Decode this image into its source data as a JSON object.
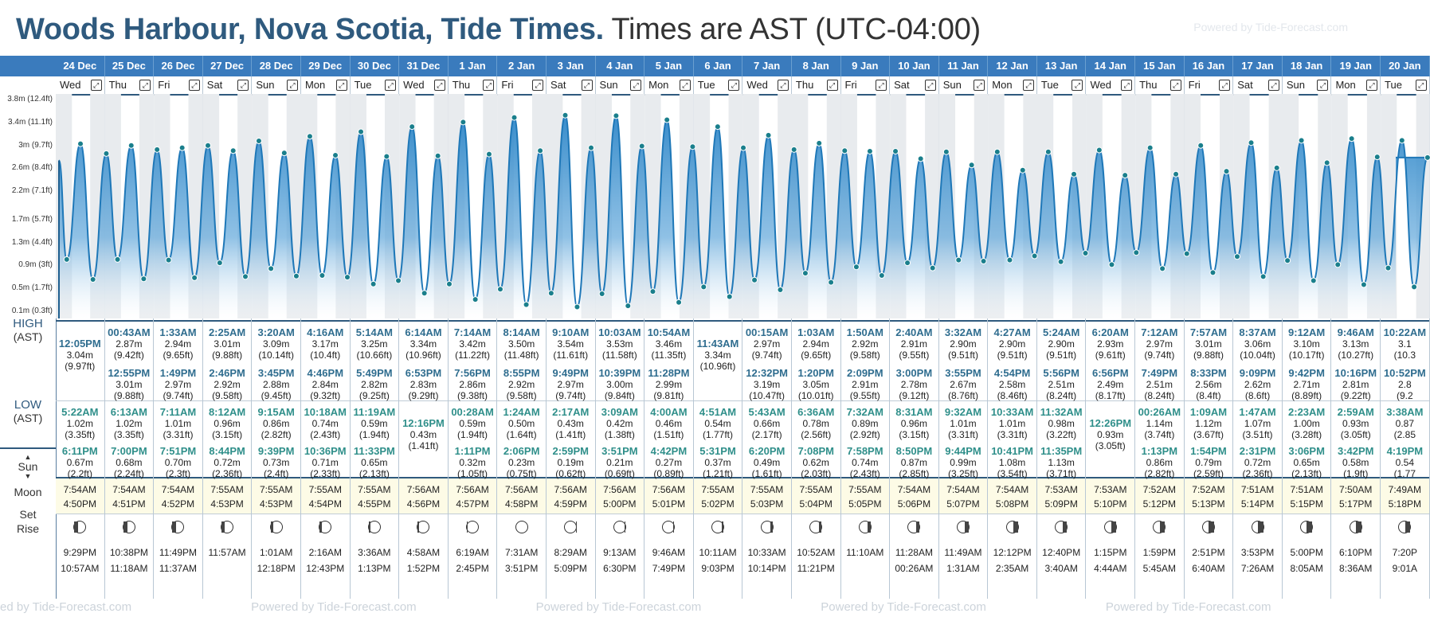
{
  "header": {
    "place": "Woods Harbour, Nova Scotia, Tide Times.",
    "timezone": "Times are AST (UTC-04:00)",
    "powered_by": "Powered by Tide-Forecast.com",
    "footer_repeat": [
      "ed by Tide-Forecast.com",
      "Powered by Tide-Forecast.com",
      "Powered by Tide-Forecast.com",
      "Powered by Tide-Forecast.com",
      "Powered by Tide-Forecast.com"
    ]
  },
  "labels": {
    "high": "HIGH",
    "high_tz": "(AST)",
    "low": "LOW",
    "low_tz": "(AST)",
    "sun": "Sun",
    "moon": "Moon",
    "set": "Set",
    "rise": "Rise",
    "axis": [
      "3.8m (12.4ft)",
      "3.4m (11.1ft)",
      "3m (9.7ft)",
      "2.6m (8.4ft)",
      "2.2m (7.1ft)",
      "1.7m (5.7ft)",
      "1.3m (4.4ft)",
      "0.9m (3ft)",
      "0.5m (1.7ft)",
      "0.1m (0.3ft)"
    ]
  },
  "colors": {
    "header_blue": "#3a7bbd",
    "title_blue": "#2f5a7e",
    "water": "#2d86c8"
  },
  "days": [
    {
      "date": "24 Dec",
      "dow": "Wed",
      "high": [
        {
          "t": "12:05PM",
          "m": "3.04m",
          "f": "(9.97ft)"
        }
      ],
      "low": [
        {
          "t": "5:22AM",
          "m": "1.02m",
          "f": "(3.35ft)"
        },
        {
          "t": "6:11PM",
          "m": "0.67m",
          "f": "(2.2ft)"
        }
      ],
      "sunrise": "7:54AM",
      "sunset": "4:50PM",
      "moonset": "9:29PM",
      "moonrise": "10:57AM",
      "phase": 0.28
    },
    {
      "date": "25 Dec",
      "dow": "Thu",
      "high": [
        {
          "t": "00:43AM",
          "m": "2.87m",
          "f": "(9.42ft)"
        },
        {
          "t": "12:55PM",
          "m": "3.01m",
          "f": "(9.88ft)"
        }
      ],
      "low": [
        {
          "t": "6:13AM",
          "m": "1.02m",
          "f": "(3.35ft)"
        },
        {
          "t": "7:00PM",
          "m": "0.68m",
          "f": "(2.24ft)"
        }
      ],
      "sunrise": "7:54AM",
      "sunset": "4:51PM",
      "moonset": "10:38PM",
      "moonrise": "11:18AM",
      "phase": 0.35
    },
    {
      "date": "26 Dec",
      "dow": "Fri",
      "high": [
        {
          "t": "1:33AM",
          "m": "2.94m",
          "f": "(9.65ft)"
        },
        {
          "t": "1:49PM",
          "m": "2.97m",
          "f": "(9.74ft)"
        }
      ],
      "low": [
        {
          "t": "7:11AM",
          "m": "1.01m",
          "f": "(3.31ft)"
        },
        {
          "t": "7:51PM",
          "m": "0.70m",
          "f": "(2.3ft)"
        }
      ],
      "sunrise": "7:54AM",
      "sunset": "4:52PM",
      "moonset": "11:49PM",
      "moonrise": "11:37AM",
      "phase": 0.42
    },
    {
      "date": "27 Dec",
      "dow": "Sat",
      "high": [
        {
          "t": "2:25AM",
          "m": "3.01m",
          "f": "(9.88ft)"
        },
        {
          "t": "2:46PM",
          "m": "2.92m",
          "f": "(9.58ft)"
        }
      ],
      "low": [
        {
          "t": "8:12AM",
          "m": "0.96m",
          "f": "(3.15ft)"
        },
        {
          "t": "8:44PM",
          "m": "0.72m",
          "f": "(2.36ft)"
        }
      ],
      "sunrise": "7:55AM",
      "sunset": "4:53PM",
      "moonset": "",
      "moonrise": "11:57AM",
      "phase": 0.5
    },
    {
      "date": "28 Dec",
      "dow": "Sun",
      "high": [
        {
          "t": "3:20AM",
          "m": "3.09m",
          "f": "(10.14ft)"
        },
        {
          "t": "3:45PM",
          "m": "2.88m",
          "f": "(9.45ft)"
        }
      ],
      "low": [
        {
          "t": "9:15AM",
          "m": "0.86m",
          "f": "(2.82ft)"
        },
        {
          "t": "9:39PM",
          "m": "0.73m",
          "f": "(2.4ft)"
        }
      ],
      "sunrise": "7:55AM",
      "sunset": "4:53PM",
      "moonset": "1:01AM",
      "moonrise": "12:18PM",
      "phase": 0.58
    },
    {
      "date": "29 Dec",
      "dow": "Mon",
      "high": [
        {
          "t": "4:16AM",
          "m": "3.17m",
          "f": "(10.4ft)"
        },
        {
          "t": "4:46PM",
          "m": "2.84m",
          "f": "(9.32ft)"
        }
      ],
      "low": [
        {
          "t": "10:18AM",
          "m": "0.74m",
          "f": "(2.43ft)"
        },
        {
          "t": "10:36PM",
          "m": "0.71m",
          "f": "(2.33ft)"
        }
      ],
      "sunrise": "7:55AM",
      "sunset": "4:54PM",
      "moonset": "2:16AM",
      "moonrise": "12:43PM",
      "phase": 0.66
    },
    {
      "date": "30 Dec",
      "dow": "Tue",
      "high": [
        {
          "t": "5:14AM",
          "m": "3.25m",
          "f": "(10.66ft)"
        },
        {
          "t": "5:49PM",
          "m": "2.82m",
          "f": "(9.25ft)"
        }
      ],
      "low": [
        {
          "t": "11:19AM",
          "m": "0.59m",
          "f": "(1.94ft)"
        },
        {
          "t": "11:33PM",
          "m": "0.65m",
          "f": "(2.13ft)"
        }
      ],
      "sunrise": "7:55AM",
      "sunset": "4:55PM",
      "moonset": "3:36AM",
      "moonrise": "1:13PM",
      "phase": 0.74
    },
    {
      "date": "31 Dec",
      "dow": "Wed",
      "high": [
        {
          "t": "6:14AM",
          "m": "3.34m",
          "f": "(10.96ft)"
        },
        {
          "t": "6:53PM",
          "m": "2.83m",
          "f": "(9.29ft)"
        }
      ],
      "low": [
        {
          "t": "12:16PM",
          "m": "0.43m",
          "f": "(1.41ft)"
        }
      ],
      "sunrise": "7:56AM",
      "sunset": "4:56PM",
      "moonset": "4:58AM",
      "moonrise": "1:52PM",
      "phase": 0.82
    },
    {
      "date": "1 Jan",
      "dow": "Thu",
      "high": [
        {
          "t": "7:14AM",
          "m": "3.42m",
          "f": "(11.22ft)"
        },
        {
          "t": "7:56PM",
          "m": "2.86m",
          "f": "(9.38ft)"
        }
      ],
      "low": [
        {
          "t": "00:28AM",
          "m": "0.59m",
          "f": "(1.94ft)"
        },
        {
          "t": "1:11PM",
          "m": "0.32m",
          "f": "(1.05ft)"
        }
      ],
      "sunrise": "7:56AM",
      "sunset": "4:57PM",
      "moonset": "6:19AM",
      "moonrise": "2:45PM",
      "phase": 0.9
    },
    {
      "date": "2 Jan",
      "dow": "Fri",
      "high": [
        {
          "t": "8:14AM",
          "m": "3.50m",
          "f": "(11.48ft)"
        },
        {
          "t": "8:55PM",
          "m": "2.92m",
          "f": "(9.58ft)"
        }
      ],
      "low": [
        {
          "t": "1:24AM",
          "m": "0.50m",
          "f": "(1.64ft)"
        },
        {
          "t": "2:06PM",
          "m": "0.23m",
          "f": "(0.75ft)"
        }
      ],
      "sunrise": "7:56AM",
      "sunset": "4:58PM",
      "moonset": "7:31AM",
      "moonrise": "3:51PM",
      "phase": 1.0
    },
    {
      "date": "3 Jan",
      "dow": "Sat",
      "high": [
        {
          "t": "9:10AM",
          "m": "3.54m",
          "f": "(11.61ft)"
        },
        {
          "t": "9:49PM",
          "m": "2.97m",
          "f": "(9.74ft)"
        }
      ],
      "low": [
        {
          "t": "2:17AM",
          "m": "0.43m",
          "f": "(1.41ft)"
        },
        {
          "t": "2:59PM",
          "m": "0.19m",
          "f": "(0.62ft)"
        }
      ],
      "sunrise": "7:56AM",
      "sunset": "4:59PM",
      "moonset": "8:29AM",
      "moonrise": "5:09PM",
      "phase": 0.95
    },
    {
      "date": "4 Jan",
      "dow": "Sun",
      "high": [
        {
          "t": "10:03AM",
          "m": "3.53m",
          "f": "(11.58ft)"
        },
        {
          "t": "10:39PM",
          "m": "3.00m",
          "f": "(9.84ft)"
        }
      ],
      "low": [
        {
          "t": "3:09AM",
          "m": "0.42m",
          "f": "(1.38ft)"
        },
        {
          "t": "3:51PM",
          "m": "0.21m",
          "f": "(0.69ft)"
        }
      ],
      "sunrise": "7:56AM",
      "sunset": "5:00PM",
      "moonset": "9:13AM",
      "moonrise": "6:30PM",
      "phase": 0.88
    },
    {
      "date": "5 Jan",
      "dow": "Mon",
      "high": [
        {
          "t": "10:54AM",
          "m": "3.46m",
          "f": "(11.35ft)"
        },
        {
          "t": "11:28PM",
          "m": "2.99m",
          "f": "(9.81ft)"
        }
      ],
      "low": [
        {
          "t": "4:00AM",
          "m": "0.46m",
          "f": "(1.51ft)"
        },
        {
          "t": "4:42PM",
          "m": "0.27m",
          "f": "(0.89ft)"
        }
      ],
      "sunrise": "7:56AM",
      "sunset": "5:01PM",
      "moonset": "9:46AM",
      "moonrise": "7:49PM",
      "phase": 0.8
    },
    {
      "date": "6 Jan",
      "dow": "Tue",
      "high": [
        {
          "t": "11:43AM",
          "m": "3.34m",
          "f": "(10.96ft)"
        }
      ],
      "low": [
        {
          "t": "4:51AM",
          "m": "0.54m",
          "f": "(1.77ft)"
        },
        {
          "t": "5:31PM",
          "m": "0.37m",
          "f": "(1.21ft)"
        }
      ],
      "sunrise": "7:55AM",
      "sunset": "5:02PM",
      "moonset": "10:11AM",
      "moonrise": "9:03PM",
      "phase": 0.72
    },
    {
      "date": "7 Jan",
      "dow": "Wed",
      "high": [
        {
          "t": "00:15AM",
          "m": "2.97m",
          "f": "(9.74ft)"
        },
        {
          "t": "12:32PM",
          "m": "3.19m",
          "f": "(10.47ft)"
        }
      ],
      "low": [
        {
          "t": "5:43AM",
          "m": "0.66m",
          "f": "(2.17ft)"
        },
        {
          "t": "6:20PM",
          "m": "0.49m",
          "f": "(1.61ft)"
        }
      ],
      "sunrise": "7:55AM",
      "sunset": "5:03PM",
      "moonset": "10:33AM",
      "moonrise": "10:14PM",
      "phase": 0.64
    },
    {
      "date": "8 Jan",
      "dow": "Thu",
      "high": [
        {
          "t": "1:03AM",
          "m": "2.94m",
          "f": "(9.65ft)"
        },
        {
          "t": "1:20PM",
          "m": "3.05m",
          "f": "(10.01ft)"
        }
      ],
      "low": [
        {
          "t": "6:36AM",
          "m": "0.78m",
          "f": "(2.56ft)"
        },
        {
          "t": "7:08PM",
          "m": "0.62m",
          "f": "(2.03ft)"
        }
      ],
      "sunrise": "7:55AM",
      "sunset": "5:04PM",
      "moonset": "10:52AM",
      "moonrise": "11:21PM",
      "phase": 0.56
    },
    {
      "date": "9 Jan",
      "dow": "Fri",
      "high": [
        {
          "t": "1:50AM",
          "m": "2.92m",
          "f": "(9.58ft)"
        },
        {
          "t": "2:09PM",
          "m": "2.91m",
          "f": "(9.55ft)"
        }
      ],
      "low": [
        {
          "t": "7:32AM",
          "m": "0.89m",
          "f": "(2.92ft)"
        },
        {
          "t": "7:58PM",
          "m": "0.74m",
          "f": "(2.43ft)"
        }
      ],
      "sunrise": "7:55AM",
      "sunset": "5:05PM",
      "moonset": "11:10AM",
      "moonrise": "",
      "phase": 0.5
    },
    {
      "date": "10 Jan",
      "dow": "Sat",
      "high": [
        {
          "t": "2:40AM",
          "m": "2.91m",
          "f": "(9.55ft)"
        },
        {
          "t": "3:00PM",
          "m": "2.78m",
          "f": "(9.12ft)"
        }
      ],
      "low": [
        {
          "t": "8:31AM",
          "m": "0.96m",
          "f": "(3.15ft)"
        },
        {
          "t": "8:50PM",
          "m": "0.87m",
          "f": "(2.85ft)"
        }
      ],
      "sunrise": "7:54AM",
      "sunset": "5:06PM",
      "moonset": "11:28AM",
      "moonrise": "00:26AM",
      "phase": 0.42
    },
    {
      "date": "11 Jan",
      "dow": "Sun",
      "high": [
        {
          "t": "3:32AM",
          "m": "2.90m",
          "f": "(9.51ft)"
        },
        {
          "t": "3:55PM",
          "m": "2.67m",
          "f": "(8.76ft)"
        }
      ],
      "low": [
        {
          "t": "9:32AM",
          "m": "1.01m",
          "f": "(3.31ft)"
        },
        {
          "t": "9:44PM",
          "m": "0.99m",
          "f": "(3.25ft)"
        }
      ],
      "sunrise": "7:54AM",
      "sunset": "5:07PM",
      "moonset": "11:49AM",
      "moonrise": "1:31AM",
      "phase": 0.34
    },
    {
      "date": "12 Jan",
      "dow": "Mon",
      "high": [
        {
          "t": "4:27AM",
          "m": "2.90m",
          "f": "(9.51ft)"
        },
        {
          "t": "4:54PM",
          "m": "2.58m",
          "f": "(8.46ft)"
        }
      ],
      "low": [
        {
          "t": "10:33AM",
          "m": "1.01m",
          "f": "(3.31ft)"
        },
        {
          "t": "10:41PM",
          "m": "1.08m",
          "f": "(3.54ft)"
        }
      ],
      "sunrise": "7:54AM",
      "sunset": "5:08PM",
      "moonset": "12:12PM",
      "moonrise": "2:35AM",
      "phase": 0.26
    },
    {
      "date": "13 Jan",
      "dow": "Tue",
      "high": [
        {
          "t": "5:24AM",
          "m": "2.90m",
          "f": "(9.51ft)"
        },
        {
          "t": "5:56PM",
          "m": "2.51m",
          "f": "(8.24ft)"
        }
      ],
      "low": [
        {
          "t": "11:32AM",
          "m": "0.98m",
          "f": "(3.22ft)"
        },
        {
          "t": "11:35PM",
          "m": "1.13m",
          "f": "(3.71ft)"
        }
      ],
      "sunrise": "7:53AM",
      "sunset": "5:09PM",
      "moonset": "12:40PM",
      "moonrise": "3:40AM",
      "phase": 0.2
    },
    {
      "date": "14 Jan",
      "dow": "Wed",
      "high": [
        {
          "t": "6:20AM",
          "m": "2.93m",
          "f": "(9.61ft)"
        },
        {
          "t": "6:56PM",
          "m": "2.49m",
          "f": "(8.17ft)"
        }
      ],
      "low": [
        {
          "t": "12:26PM",
          "m": "0.93m",
          "f": "(3.05ft)"
        }
      ],
      "sunrise": "7:53AM",
      "sunset": "5:10PM",
      "moonset": "1:15PM",
      "moonrise": "4:44AM",
      "phase": 0.14
    },
    {
      "date": "15 Jan",
      "dow": "Thu",
      "high": [
        {
          "t": "7:12AM",
          "m": "2.97m",
          "f": "(9.74ft)"
        },
        {
          "t": "7:49PM",
          "m": "2.51m",
          "f": "(8.24ft)"
        }
      ],
      "low": [
        {
          "t": "00:26AM",
          "m": "1.14m",
          "f": "(3.74ft)"
        },
        {
          "t": "1:13PM",
          "m": "0.86m",
          "f": "(2.82ft)"
        }
      ],
      "sunrise": "7:52AM",
      "sunset": "5:12PM",
      "moonset": "1:59PM",
      "moonrise": "5:45AM",
      "phase": 0.08
    },
    {
      "date": "16 Jan",
      "dow": "Fri",
      "high": [
        {
          "t": "7:57AM",
          "m": "3.01m",
          "f": "(9.88ft)"
        },
        {
          "t": "8:33PM",
          "m": "2.56m",
          "f": "(8.4ft)"
        }
      ],
      "low": [
        {
          "t": "1:09AM",
          "m": "1.12m",
          "f": "(3.67ft)"
        },
        {
          "t": "1:54PM",
          "m": "0.79m",
          "f": "(2.59ft)"
        }
      ],
      "sunrise": "7:52AM",
      "sunset": "5:13PM",
      "moonset": "2:51PM",
      "moonrise": "6:40AM",
      "phase": 0.03
    },
    {
      "date": "17 Jan",
      "dow": "Sat",
      "high": [
        {
          "t": "8:37AM",
          "m": "3.06m",
          "f": "(10.04ft)"
        },
        {
          "t": "9:09PM",
          "m": "2.62m",
          "f": "(8.6ft)"
        }
      ],
      "low": [
        {
          "t": "1:47AM",
          "m": "1.07m",
          "f": "(3.51ft)"
        },
        {
          "t": "2:31PM",
          "m": "0.72m",
          "f": "(2.36ft)"
        }
      ],
      "sunrise": "7:51AM",
      "sunset": "5:14PM",
      "moonset": "3:53PM",
      "moonrise": "7:26AM",
      "phase": 0.0
    },
    {
      "date": "18 Jan",
      "dow": "Sun",
      "high": [
        {
          "t": "9:12AM",
          "m": "3.10m",
          "f": "(10.17ft)"
        },
        {
          "t": "9:42PM",
          "m": "2.71m",
          "f": "(8.89ft)"
        }
      ],
      "low": [
        {
          "t": "2:23AM",
          "m": "1.00m",
          "f": "(3.28ft)"
        },
        {
          "t": "3:06PM",
          "m": "0.65m",
          "f": "(2.13ft)"
        }
      ],
      "sunrise": "7:51AM",
      "sunset": "5:15PM",
      "moonset": "5:00PM",
      "moonrise": "8:05AM",
      "phase": 0.04
    },
    {
      "date": "19 Jan",
      "dow": "Mon",
      "high": [
        {
          "t": "9:46AM",
          "m": "3.13m",
          "f": "(10.27ft)"
        },
        {
          "t": "10:16PM",
          "m": "2.81m",
          "f": "(9.22ft)"
        }
      ],
      "low": [
        {
          "t": "2:59AM",
          "m": "0.93m",
          "f": "(3.05ft)"
        },
        {
          "t": "3:42PM",
          "m": "0.58m",
          "f": "(1.9ft)"
        }
      ],
      "sunrise": "7:50AM",
      "sunset": "5:17PM",
      "moonset": "6:10PM",
      "moonrise": "8:36AM",
      "phase": 0.1
    },
    {
      "date": "20 Jan",
      "dow": "Tue",
      "high": [
        {
          "t": "10:22AM",
          "m": "3.1",
          "f": "(10.3"
        },
        {
          "t": "10:52PM",
          "m": "2.8",
          "f": "(9.2"
        }
      ],
      "low": [
        {
          "t": "3:38AM",
          "m": "0.87",
          "f": "(2.85"
        },
        {
          "t": "4:19PM",
          "m": "0.54",
          "f": "(1.77"
        }
      ],
      "sunrise": "7:49AM",
      "sunset": "5:18PM",
      "moonset": "7:20P",
      "moonrise": "9:01A",
      "phase": 0.16
    }
  ]
}
